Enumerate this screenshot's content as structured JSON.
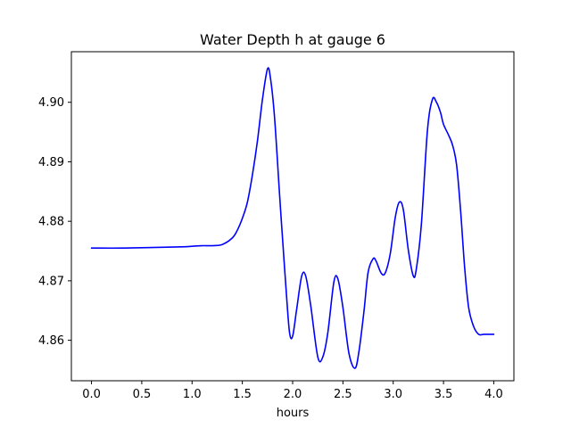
{
  "chart_data": {
    "type": "line",
    "title": "Water Depth h at gauge 6",
    "xlabel": "hours",
    "ylabel": "",
    "xlim": [
      -0.2,
      4.2
    ],
    "ylim": [
      4.8532,
      4.9085
    ],
    "xticks": [
      0.0,
      0.5,
      1.0,
      1.5,
      2.0,
      2.5,
      3.0,
      3.5,
      4.0
    ],
    "xtick_labels": [
      "0.0",
      "0.5",
      "1.0",
      "1.5",
      "2.0",
      "2.5",
      "3.0",
      "3.5",
      "4.0"
    ],
    "yticks": [
      4.86,
      4.87,
      4.88,
      4.89,
      4.9
    ],
    "ytick_labels": [
      "4.86",
      "4.87",
      "4.88",
      "4.89",
      "4.90"
    ],
    "grid": false,
    "series": [
      {
        "color": "#0000ff",
        "x": [
          0.0,
          0.3,
          0.6,
          0.9,
          1.0,
          1.1,
          1.2,
          1.3,
          1.4,
          1.45,
          1.5,
          1.55,
          1.6,
          1.65,
          1.7,
          1.75,
          1.78,
          1.82,
          1.87,
          1.9,
          1.94,
          1.97,
          2.0,
          2.04,
          2.09,
          2.13,
          2.18,
          2.25,
          2.3,
          2.35,
          2.41,
          2.45,
          2.5,
          2.56,
          2.62,
          2.66,
          2.71,
          2.75,
          2.8,
          2.83,
          2.88,
          2.92,
          2.97,
          3.02,
          3.06,
          3.1,
          3.15,
          3.2,
          3.23,
          3.28,
          3.34,
          3.39,
          3.43,
          3.47,
          3.5,
          3.55,
          3.59,
          3.63,
          3.67,
          3.71,
          3.75,
          3.8,
          3.85,
          3.9,
          3.95,
          4.0
        ],
        "y": [
          4.8755,
          4.8755,
          4.8756,
          4.8757,
          4.8758,
          4.8759,
          4.8759,
          4.8761,
          4.8772,
          4.8785,
          4.8805,
          4.8832,
          4.8878,
          4.8935,
          4.9005,
          4.9056,
          4.904,
          4.8975,
          4.8845,
          4.877,
          4.8673,
          4.8612,
          4.8607,
          4.8652,
          4.8708,
          4.8708,
          4.8658,
          4.8572,
          4.8572,
          4.8613,
          4.8698,
          4.8703,
          4.8655,
          4.8578,
          4.8553,
          4.8582,
          4.865,
          4.8714,
          4.8737,
          4.8733,
          4.8713,
          4.8713,
          4.8745,
          4.8806,
          4.8832,
          4.882,
          4.8752,
          4.8708,
          4.872,
          4.8795,
          4.8952,
          4.9005,
          4.9,
          4.8983,
          4.8963,
          4.8945,
          4.8928,
          4.8895,
          4.8818,
          4.8723,
          4.8655,
          4.8623,
          4.861,
          4.861,
          4.861,
          4.861
        ]
      }
    ]
  }
}
